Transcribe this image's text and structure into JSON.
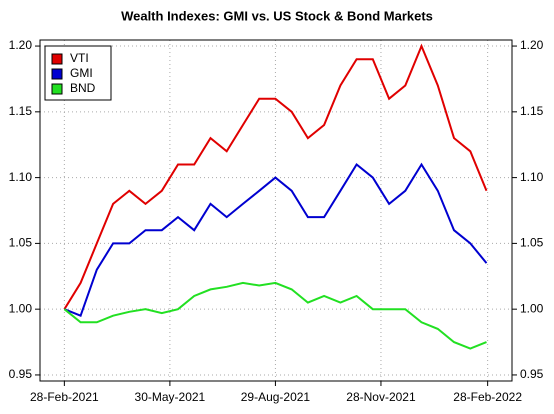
{
  "chart_data": {
    "type": "line",
    "title": "Wealth Indexes: GMI vs. US Stock & Bond Markets",
    "x": [
      "2021-02-28",
      "2021-03-14",
      "2021-03-28",
      "2021-04-11",
      "2021-04-25",
      "2021-05-09",
      "2021-05-23",
      "2021-06-06",
      "2021-06-20",
      "2021-07-04",
      "2021-07-18",
      "2021-08-01",
      "2021-08-15",
      "2021-08-29",
      "2021-09-12",
      "2021-09-26",
      "2021-10-10",
      "2021-10-24",
      "2021-11-07",
      "2021-11-21",
      "2021-12-05",
      "2021-12-19",
      "2022-01-02",
      "2022-01-16",
      "2022-01-30",
      "2022-02-13",
      "2022-02-27"
    ],
    "series": [
      {
        "name": "VTI",
        "color": "#e00000",
        "values": [
          1.0,
          1.02,
          1.05,
          1.08,
          1.09,
          1.08,
          1.09,
          1.11,
          1.11,
          1.13,
          1.12,
          1.14,
          1.16,
          1.16,
          1.15,
          1.13,
          1.14,
          1.17,
          1.19,
          1.19,
          1.16,
          1.17,
          1.2,
          1.17,
          1.13,
          1.12,
          1.09
        ]
      },
      {
        "name": "GMI",
        "color": "#0000d0",
        "values": [
          1.0,
          0.995,
          1.03,
          1.05,
          1.05,
          1.06,
          1.06,
          1.07,
          1.06,
          1.08,
          1.07,
          1.08,
          1.09,
          1.1,
          1.09,
          1.07,
          1.07,
          1.09,
          1.11,
          1.1,
          1.08,
          1.09,
          1.11,
          1.09,
          1.06,
          1.05,
          1.035
        ]
      },
      {
        "name": "BND",
        "color": "#22e022",
        "values": [
          1.0,
          0.99,
          0.99,
          0.995,
          0.998,
          1.0,
          0.997,
          1.0,
          1.01,
          1.015,
          1.017,
          1.02,
          1.018,
          1.02,
          1.015,
          1.005,
          1.01,
          1.005,
          1.01,
          1.0,
          1.0,
          1.0,
          0.99,
          0.985,
          0.975,
          0.97,
          0.975
        ]
      }
    ],
    "xlim": [
      "2021-02-07",
      "2022-03-21"
    ],
    "xticks": [
      {
        "value": "2021-02-28",
        "label": "28-Feb-2021"
      },
      {
        "value": "2021-05-30",
        "label": "30-May-2021"
      },
      {
        "value": "2021-08-29",
        "label": "29-Aug-2021"
      },
      {
        "value": "2021-11-28",
        "label": "28-Nov-2021"
      },
      {
        "value": "2022-02-28",
        "label": "28-Feb-2022"
      }
    ],
    "ylim": [
      0.9454,
      1.2046
    ],
    "yticks": [
      {
        "value": 0.95,
        "label": "0.95"
      },
      {
        "value": 1.0,
        "label": "1.00"
      },
      {
        "value": 1.05,
        "label": "1.05"
      },
      {
        "value": 1.1,
        "label": "1.10"
      },
      {
        "value": 1.15,
        "label": "1.15"
      },
      {
        "value": 1.2,
        "label": "1.20"
      }
    ],
    "grid": true,
    "legend": "top-left"
  }
}
